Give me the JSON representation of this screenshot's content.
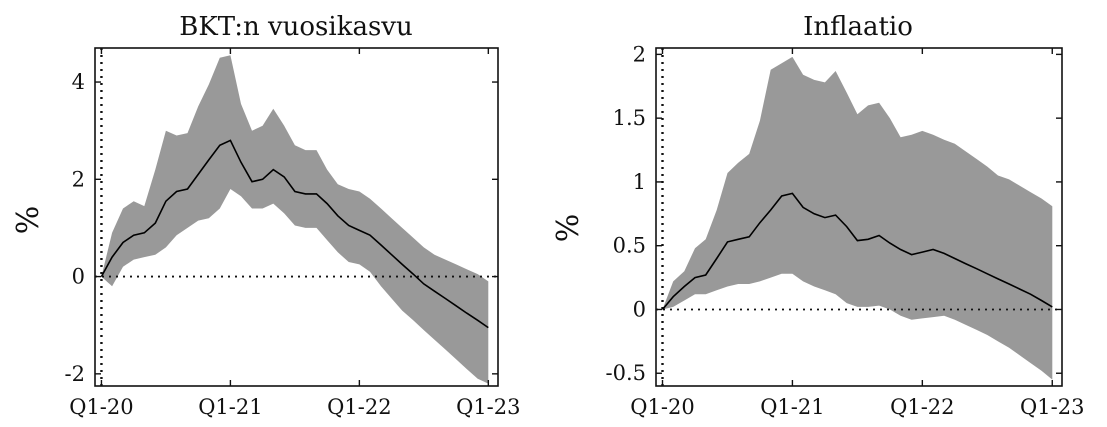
{
  "chart_data": [
    {
      "type": "area",
      "title": "BKT:n vuosikasvu",
      "ylabel": "%",
      "xlabel": "",
      "xlim": [
        -0.2,
        12.3
      ],
      "ylim": [
        -2.25,
        4.7
      ],
      "x_ticks": [
        {
          "pos": 0,
          "label": "Q1-20"
        },
        {
          "pos": 4,
          "label": "Q1-21"
        },
        {
          "pos": 8,
          "label": "Q1-22"
        },
        {
          "pos": 12,
          "label": "Q1-23"
        }
      ],
      "y_ticks": [
        {
          "pos": -2,
          "label": "-2"
        },
        {
          "pos": 0,
          "label": "0"
        },
        {
          "pos": 2,
          "label": "2"
        },
        {
          "pos": 4,
          "label": "4"
        }
      ],
      "vline_x": 0,
      "hline_y": 0,
      "x": [
        0,
        0.33,
        0.67,
        1,
        1.33,
        1.67,
        2,
        2.33,
        2.67,
        3,
        3.33,
        3.67,
        4,
        4.33,
        4.67,
        5,
        5.33,
        5.67,
        6,
        6.33,
        6.67,
        7,
        7.33,
        7.67,
        8,
        8.33,
        8.67,
        9,
        9.33,
        9.67,
        10,
        10.33,
        10.67,
        11,
        11.33,
        11.67,
        12
      ],
      "median": [
        0,
        0.4,
        0.7,
        0.85,
        0.9,
        1.1,
        1.55,
        1.75,
        1.8,
        2.1,
        2.4,
        2.7,
        2.8,
        2.35,
        1.95,
        2.0,
        2.2,
        2.05,
        1.75,
        1.7,
        1.7,
        1.5,
        1.25,
        1.05,
        0.95,
        0.85,
        0.65,
        0.45,
        0.25,
        0.05,
        -0.15,
        -0.3,
        -0.45,
        -0.6,
        -0.75,
        -0.9,
        -1.05
      ],
      "upper": [
        0,
        0.9,
        1.4,
        1.55,
        1.45,
        2.2,
        3.0,
        2.9,
        2.95,
        3.5,
        3.95,
        4.5,
        4.55,
        3.55,
        3.0,
        3.1,
        3.45,
        3.1,
        2.7,
        2.6,
        2.6,
        2.2,
        1.9,
        1.8,
        1.75,
        1.6,
        1.4,
        1.2,
        1.0,
        0.8,
        0.6,
        0.45,
        0.35,
        0.25,
        0.15,
        0.05,
        -0.1
      ],
      "lower": [
        0,
        -0.2,
        0.2,
        0.35,
        0.4,
        0.45,
        0.6,
        0.85,
        1.0,
        1.15,
        1.2,
        1.4,
        1.8,
        1.65,
        1.4,
        1.4,
        1.5,
        1.3,
        1.05,
        1.0,
        1.0,
        0.75,
        0.5,
        0.3,
        0.25,
        0.1,
        -0.2,
        -0.45,
        -0.7,
        -0.9,
        -1.1,
        -1.3,
        -1.5,
        -1.7,
        -1.9,
        -2.1,
        -2.2
      ]
    },
    {
      "type": "area",
      "title": "Inflaatio",
      "ylabel": "%",
      "xlabel": "",
      "xlim": [
        -0.2,
        12.3
      ],
      "ylim": [
        -0.6,
        2.05
      ],
      "x_ticks": [
        {
          "pos": 0,
          "label": "Q1-20"
        },
        {
          "pos": 4,
          "label": "Q1-21"
        },
        {
          "pos": 8,
          "label": "Q1-22"
        },
        {
          "pos": 12,
          "label": "Q1-23"
        }
      ],
      "y_ticks": [
        {
          "pos": -0.5,
          "label": "-0.5"
        },
        {
          "pos": 0,
          "label": "0"
        },
        {
          "pos": 0.5,
          "label": "0.5"
        },
        {
          "pos": 1,
          "label": "1"
        },
        {
          "pos": 1.5,
          "label": "1.5"
        },
        {
          "pos": 2,
          "label": "2"
        }
      ],
      "vline_x": 0,
      "hline_y": 0,
      "x": [
        0,
        0.33,
        0.67,
        1,
        1.33,
        1.67,
        2,
        2.33,
        2.67,
        3,
        3.33,
        3.67,
        4,
        4.33,
        4.67,
        5,
        5.33,
        5.67,
        6,
        6.33,
        6.67,
        7,
        7.33,
        7.67,
        8,
        8.33,
        8.67,
        9,
        9.33,
        9.67,
        10,
        10.33,
        10.67,
        11,
        11.33,
        11.67,
        12
      ],
      "median": [
        0,
        0.1,
        0.18,
        0.25,
        0.27,
        0.4,
        0.53,
        0.55,
        0.57,
        0.68,
        0.78,
        0.89,
        0.91,
        0.8,
        0.75,
        0.72,
        0.74,
        0.65,
        0.54,
        0.55,
        0.58,
        0.52,
        0.47,
        0.43,
        0.45,
        0.47,
        0.44,
        0.4,
        0.36,
        0.32,
        0.28,
        0.24,
        0.2,
        0.16,
        0.12,
        0.07,
        0.02
      ],
      "upper": [
        0,
        0.22,
        0.3,
        0.48,
        0.55,
        0.78,
        1.07,
        1.15,
        1.22,
        1.48,
        1.88,
        1.93,
        1.98,
        1.84,
        1.8,
        1.78,
        1.87,
        1.7,
        1.53,
        1.6,
        1.62,
        1.5,
        1.35,
        1.37,
        1.4,
        1.37,
        1.33,
        1.3,
        1.24,
        1.18,
        1.12,
        1.05,
        1.02,
        0.97,
        0.92,
        0.87,
        0.81
      ],
      "lower": [
        0,
        0.02,
        0.07,
        0.12,
        0.12,
        0.15,
        0.18,
        0.2,
        0.2,
        0.22,
        0.25,
        0.28,
        0.28,
        0.22,
        0.18,
        0.15,
        0.12,
        0.05,
        0.02,
        0.02,
        0.03,
        0.0,
        -0.05,
        -0.08,
        -0.07,
        -0.06,
        -0.05,
        -0.08,
        -0.12,
        -0.16,
        -0.2,
        -0.25,
        -0.3,
        -0.36,
        -0.42,
        -0.48,
        -0.55
      ]
    }
  ]
}
